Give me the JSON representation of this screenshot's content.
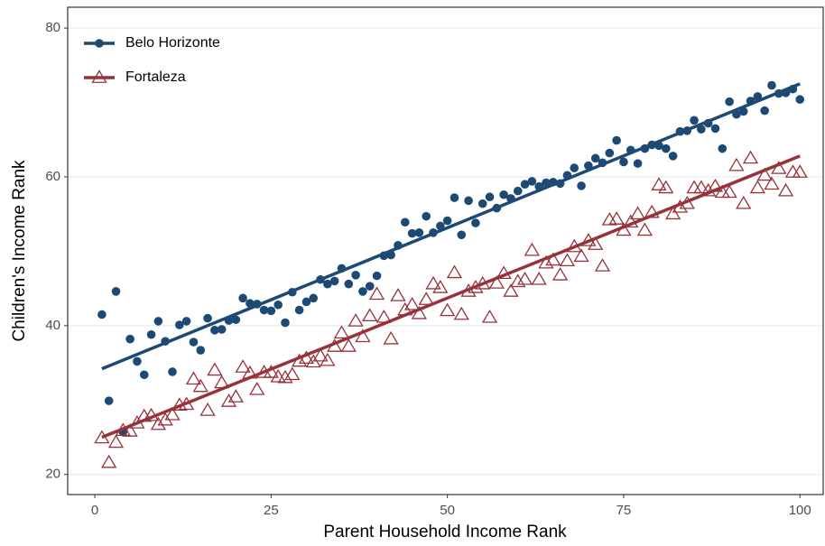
{
  "chart_data": {
    "type": "scatter",
    "x_label": "Parent Household Income Rank",
    "y_label": "Children's Income Rank",
    "xlim": [
      -3.85,
      103.3
    ],
    "ylim": [
      17.3,
      82.8
    ],
    "xticks": [
      0,
      25,
      50,
      75,
      100
    ],
    "yticks": [
      20,
      40,
      60,
      80
    ],
    "grid": "y",
    "legend": "top-left",
    "x": [
      1,
      2,
      3,
      4,
      5,
      6,
      7,
      8,
      9,
      10,
      11,
      12,
      13,
      14,
      15,
      16,
      17,
      18,
      19,
      20,
      21,
      22,
      23,
      24,
      25,
      26,
      27,
      28,
      29,
      30,
      31,
      32,
      33,
      34,
      35,
      36,
      37,
      38,
      39,
      40,
      41,
      42,
      43,
      44,
      45,
      46,
      47,
      48,
      49,
      50,
      51,
      52,
      53,
      54,
      55,
      56,
      57,
      58,
      59,
      60,
      61,
      62,
      63,
      64,
      65,
      66,
      67,
      68,
      69,
      70,
      71,
      72,
      73,
      74,
      75,
      76,
      77,
      78,
      79,
      80,
      81,
      82,
      83,
      84,
      85,
      86,
      87,
      88,
      89,
      90,
      91,
      92,
      93,
      94,
      95,
      96,
      97,
      98,
      99,
      100
    ],
    "series": [
      {
        "name": "Belo Horizonte",
        "color": "#1d4a74",
        "marker": "circle",
        "values": [
          41.5,
          29.9,
          44.6,
          25.7,
          38.2,
          35.2,
          33.4,
          38.8,
          40.6,
          37.9,
          33.8,
          40.1,
          40.6,
          37.8,
          36.7,
          41.0,
          39.4,
          39.5,
          40.7,
          40.8,
          43.7,
          43.0,
          42.9,
          42.1,
          42.0,
          42.8,
          40.4,
          44.5,
          42.1,
          43.2,
          43.7,
          46.2,
          45.6,
          46.0,
          47.7,
          45.6,
          46.8,
          44.6,
          45.3,
          46.7,
          49.4,
          49.5,
          50.8,
          53.9,
          52.4,
          52.5,
          54.7,
          52.5,
          53.4,
          54.1,
          57.2,
          52.2,
          56.8,
          53.8,
          56.4,
          57.3,
          55.8,
          57.6,
          57.1,
          58.1,
          59.0,
          59.4,
          58.7,
          59.2,
          59.3,
          59.1,
          60.2,
          61.2,
          58.8,
          61.5,
          62.5,
          61.9,
          63.2,
          64.9,
          62.0,
          63.6,
          61.8,
          63.8,
          64.3,
          64.2,
          63.8,
          62.8,
          66.1,
          66.2,
          67.6,
          66.4,
          67.2,
          66.5,
          63.8,
          70.1,
          68.4,
          68.8,
          70.2,
          70.8,
          68.9,
          72.3,
          71.2,
          71.3,
          71.8,
          70.4
        ],
        "fit": {
          "x": [
            1,
            100
          ],
          "values": [
            34.2,
            72.5
          ]
        }
      },
      {
        "name": "Fortaleza",
        "color": "#963239",
        "marker": "triangle-open",
        "values": [
          24.9,
          21.6,
          24.3,
          25.9,
          25.8,
          26.9,
          27.8,
          27.9,
          26.7,
          27.3,
          28.0,
          29.3,
          29.4,
          32.8,
          31.8,
          28.6,
          34.0,
          32.3,
          29.8,
          30.4,
          34.4,
          33.6,
          31.4,
          33.7,
          33.7,
          33.1,
          33.0,
          33.4,
          35.2,
          35.6,
          35.1,
          35.9,
          35.3,
          37.2,
          39.0,
          37.2,
          40.6,
          38.5,
          41.3,
          44.2,
          41.1,
          38.2,
          44.0,
          42.1,
          42.8,
          41.6,
          43.5,
          45.6,
          45.1,
          42.0,
          47.1,
          41.5,
          44.6,
          45.1,
          45.6,
          41.1,
          45.7,
          47.0,
          44.6,
          45.9,
          46.2,
          50.1,
          46.2,
          48.4,
          48.8,
          46.8,
          48.7,
          50.6,
          49.3,
          51.4,
          50.9,
          48.0,
          54.2,
          54.3,
          52.8,
          53.9,
          55.0,
          52.8,
          55.2,
          58.9,
          58.5,
          55.0,
          55.9,
          56.4,
          58.5,
          58.5,
          58.1,
          58.7,
          57.9,
          57.9,
          61.5,
          56.4,
          62.5,
          58.5,
          60.2,
          59.0,
          61.1,
          58.1,
          60.6,
          60.6
        ],
        "fit": {
          "x": [
            1,
            100
          ],
          "values": [
            25.0,
            62.8
          ]
        }
      }
    ]
  }
}
